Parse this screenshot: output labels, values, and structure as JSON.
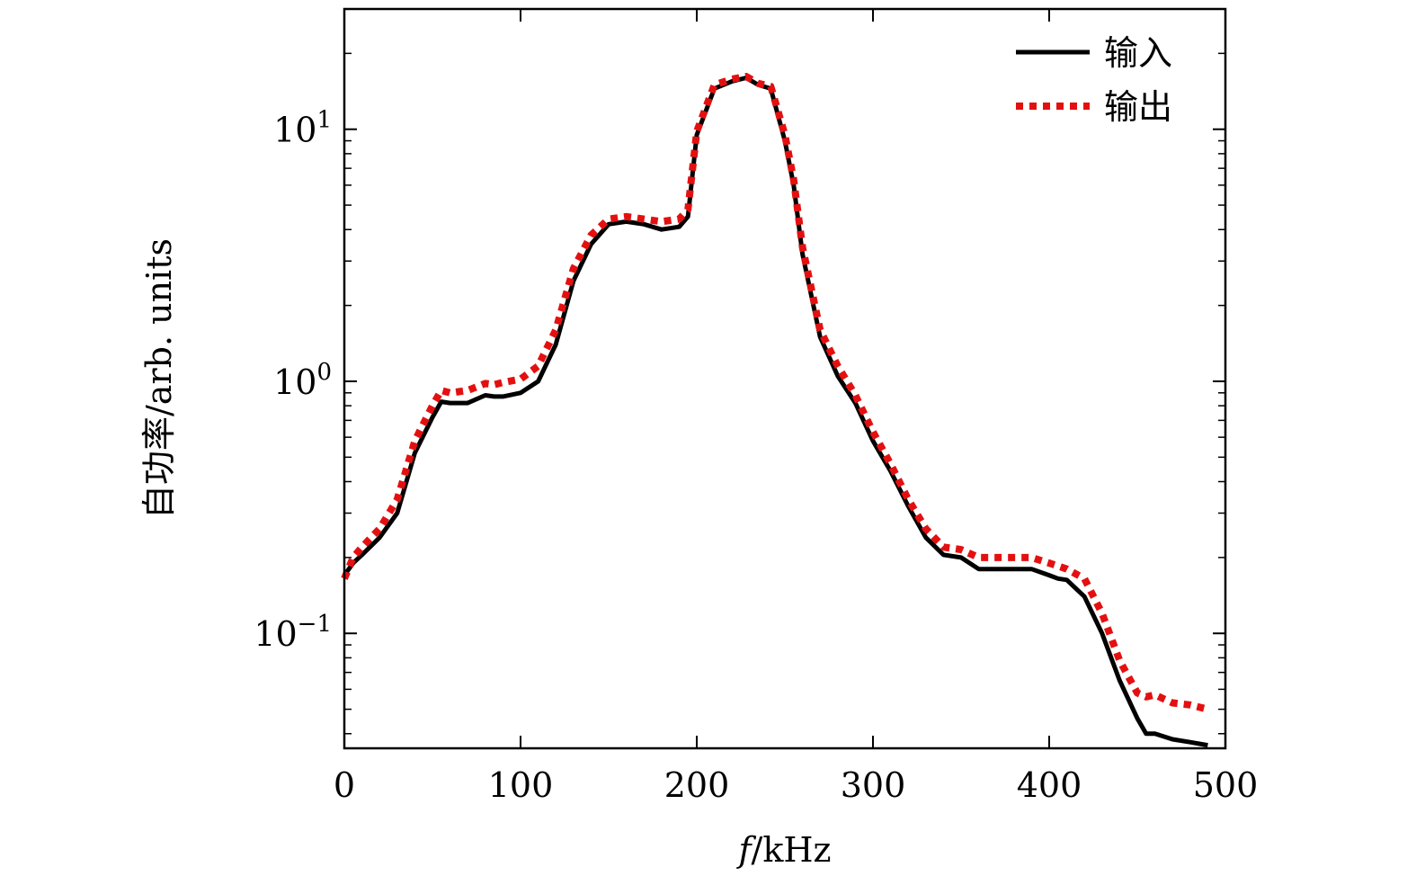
{
  "chart_data": {
    "type": "line",
    "xlabel": "f/kHz",
    "ylabel": "自功率/arb. units",
    "xlim": [
      0,
      500
    ],
    "ylim": [
      0.035,
      30
    ],
    "yscale": "log",
    "xticks": [
      0,
      100,
      200,
      300,
      400,
      500
    ],
    "xtick_labels": [
      "0",
      "100",
      "200",
      "300",
      "400",
      "500"
    ],
    "yticks": [
      0.1,
      1,
      10
    ],
    "ytick_base": "10",
    "ytick_exponents": [
      "−1",
      "0",
      "1"
    ],
    "grid": false,
    "legend_position": "top-right",
    "series": [
      {
        "name": "输入",
        "color": "#000000",
        "style": "solid",
        "x": [
          0,
          5,
          10,
          20,
          30,
          40,
          50,
          55,
          60,
          70,
          80,
          85,
          90,
          100,
          110,
          120,
          130,
          140,
          150,
          160,
          170,
          180,
          190,
          195,
          200,
          210,
          220,
          228,
          235,
          242,
          250,
          255,
          260,
          270,
          280,
          290,
          300,
          310,
          320,
          330,
          340,
          350,
          360,
          370,
          380,
          390,
          400,
          405,
          410,
          420,
          430,
          440,
          450,
          455,
          460,
          470,
          480,
          490
        ],
        "y": [
          0.17,
          0.19,
          0.205,
          0.24,
          0.3,
          0.52,
          0.72,
          0.83,
          0.82,
          0.82,
          0.88,
          0.87,
          0.87,
          0.9,
          1.0,
          1.4,
          2.5,
          3.5,
          4.2,
          4.3,
          4.2,
          4.0,
          4.1,
          4.5,
          9.5,
          14.5,
          15.5,
          16.0,
          15.0,
          14.5,
          9.0,
          6.0,
          3.2,
          1.5,
          1.05,
          0.82,
          0.58,
          0.44,
          0.32,
          0.24,
          0.205,
          0.2,
          0.18,
          0.18,
          0.18,
          0.18,
          0.17,
          0.165,
          0.163,
          0.14,
          0.1,
          0.065,
          0.046,
          0.04,
          0.04,
          0.038,
          0.037,
          0.036
        ]
      },
      {
        "name": "输出",
        "color": "#e41010",
        "style": "dotted",
        "x": [
          0,
          5,
          10,
          20,
          30,
          40,
          50,
          55,
          60,
          70,
          80,
          85,
          90,
          100,
          110,
          120,
          130,
          140,
          150,
          160,
          170,
          180,
          190,
          195,
          200,
          210,
          220,
          228,
          235,
          242,
          250,
          255,
          260,
          270,
          280,
          290,
          300,
          310,
          320,
          330,
          340,
          350,
          360,
          370,
          380,
          390,
          400,
          405,
          410,
          420,
          430,
          440,
          450,
          455,
          460,
          470,
          480,
          490
        ],
        "y": [
          0.165,
          0.2,
          0.22,
          0.26,
          0.34,
          0.58,
          0.8,
          0.92,
          0.9,
          0.92,
          0.98,
          0.97,
          0.99,
          1.02,
          1.15,
          1.6,
          2.8,
          3.8,
          4.4,
          4.5,
          4.4,
          4.3,
          4.4,
          4.8,
          9.8,
          15.0,
          15.8,
          16.2,
          15.2,
          14.8,
          9.5,
          6.3,
          3.4,
          1.6,
          1.15,
          0.88,
          0.63,
          0.47,
          0.34,
          0.26,
          0.22,
          0.215,
          0.2,
          0.2,
          0.2,
          0.2,
          0.19,
          0.185,
          0.18,
          0.165,
          0.12,
          0.078,
          0.058,
          0.056,
          0.057,
          0.053,
          0.052,
          0.05
        ]
      }
    ]
  }
}
